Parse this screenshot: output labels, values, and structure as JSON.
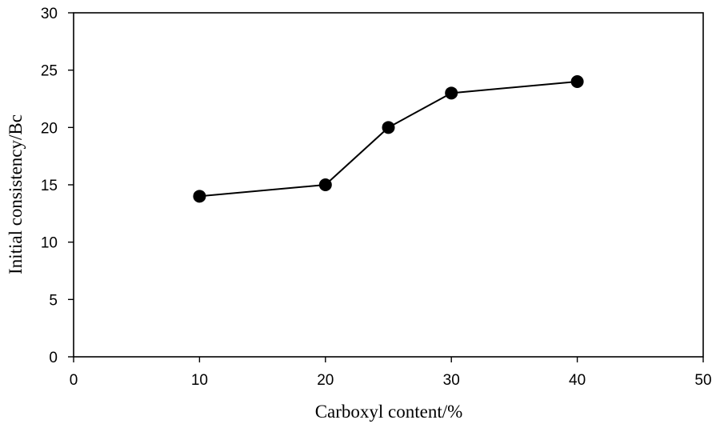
{
  "chart_data": {
    "type": "line",
    "title": "",
    "xlabel": "Carboxyl content/%",
    "ylabel": "Initial consistency/Bc",
    "xlim": [
      0,
      50
    ],
    "ylim": [
      0,
      30
    ],
    "xticks": [
      0,
      10,
      20,
      30,
      40,
      50
    ],
    "yticks": [
      0,
      5,
      10,
      15,
      20,
      25,
      30
    ],
    "xtick_labels": [
      "0",
      "10",
      "20",
      "30",
      "40",
      "50"
    ],
    "ytick_labels": [
      "0",
      "5",
      "10",
      "15",
      "20",
      "25",
      "30"
    ],
    "grid": false,
    "legend": "none",
    "series": [
      {
        "x": [
          10,
          20,
          25,
          30,
          40
        ],
        "y": [
          14,
          15,
          20,
          23,
          24
        ],
        "color": "#000000",
        "marker": "filled-circle"
      }
    ]
  }
}
